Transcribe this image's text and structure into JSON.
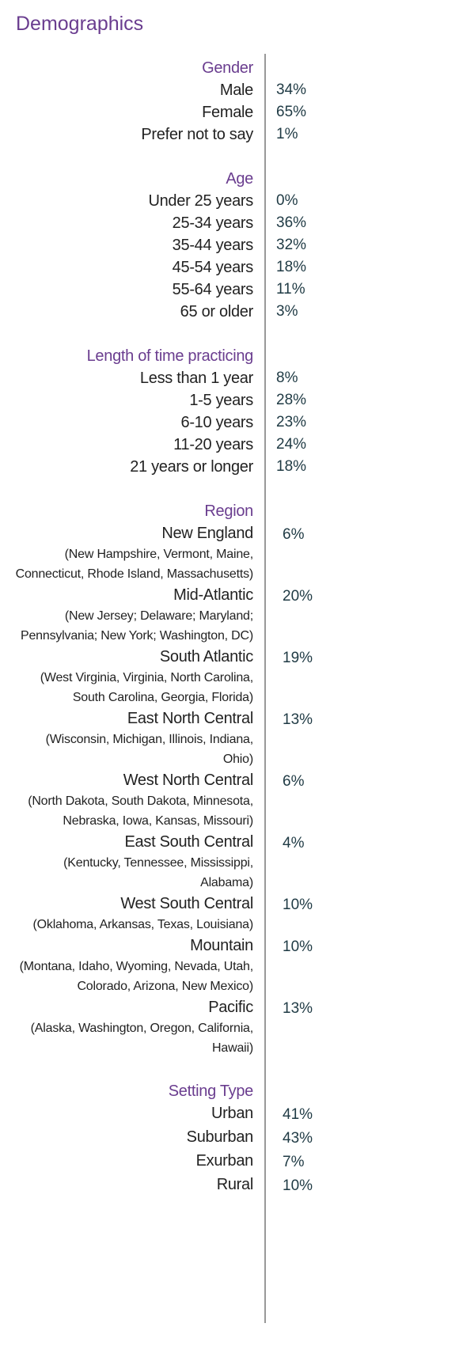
{
  "title": "Demographics",
  "sections": [
    {
      "heading": "Gender",
      "rows": [
        {
          "label": "Male",
          "value": "34%"
        },
        {
          "label": "Female",
          "value": "65%"
        },
        {
          "label": "Prefer not to say",
          "value": "1%"
        }
      ]
    },
    {
      "heading": "Age",
      "rows": [
        {
          "label": "Under 25 years",
          "value": "0%"
        },
        {
          "label": "25-34 years",
          "value": "36%"
        },
        {
          "label": "35-44 years",
          "value": "32%"
        },
        {
          "label": "45-54 years",
          "value": "18%"
        },
        {
          "label": "55-64 years",
          "value": "11%"
        },
        {
          "label": "65 or older",
          "value": "3%"
        }
      ]
    },
    {
      "heading": "Length of time practicing",
      "rows": [
        {
          "label": "Less than 1 year",
          "value": "8%"
        },
        {
          "label": "1-5 years",
          "value": "28%"
        },
        {
          "label": "6-10 years",
          "value": "23%"
        },
        {
          "label": "11-20 years",
          "value": "24%"
        },
        {
          "label": "21 years or longer",
          "value": "18%"
        }
      ]
    },
    {
      "heading": "Region",
      "rows": [
        {
          "label": "New England",
          "note": "(New Hampshire, Vermont, Maine, Connecticut, Rhode Island, Massachusetts)",
          "value": "6%"
        },
        {
          "label": "Mid-Atlantic",
          "note": "(New Jersey; Delaware; Maryland; Pennsylvania; New York; Washington, DC)",
          "value": "20%"
        },
        {
          "label": "South Atlantic",
          "note": "(West Virginia, Virginia, North Carolina, South Carolina, Georgia, Florida)",
          "value": "19%"
        },
        {
          "label": "East North Central",
          "note": "(Wisconsin, Michigan, Illinois, Indiana, Ohio)",
          "value": "13%"
        },
        {
          "label": "West North Central",
          "note": "(North Dakota, South Dakota, Minnesota, Nebraska, Iowa, Kansas, Missouri)",
          "value": "6%"
        },
        {
          "label": "East South Central",
          "note": "(Kentucky, Tennessee, Mississippi, Alabama)",
          "value": "4%"
        },
        {
          "label": "West South Central",
          "note": "(Oklahoma, Arkansas, Texas, Louisiana)",
          "value": "10%"
        },
        {
          "label": "Mountain",
          "note": "(Montana, Idaho, Wyoming, Nevada, Utah, Colorado, Arizona, New Mexico)",
          "value": "10%"
        },
        {
          "label": "Pacific",
          "note": "(Alaska, Washington, Oregon, California, Hawaii)",
          "value": "13%"
        }
      ]
    },
    {
      "heading": "Setting Type",
      "rows": [
        {
          "label": "Urban",
          "value": "41%"
        },
        {
          "label": "Suburban",
          "value": "43%"
        },
        {
          "label": "Exurban",
          "value": "7%"
        },
        {
          "label": "Rural",
          "value": "10%"
        }
      ]
    }
  ]
}
